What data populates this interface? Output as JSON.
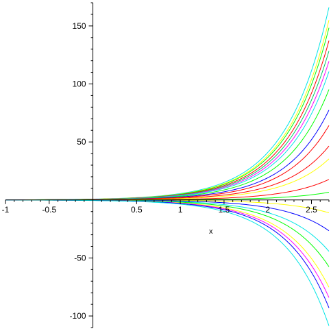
{
  "chart_data": {
    "type": "line",
    "title": "",
    "xlabel": "x",
    "ylabel": "",
    "xlim": [
      -1,
      2.7
    ],
    "ylim": [
      -110,
      170
    ],
    "grid": false,
    "legend": "none",
    "x_ticks": [
      {
        "value": -1,
        "label": "-1"
      },
      {
        "value": -0.5,
        "label": "-0.5"
      },
      {
        "value": 0.5,
        "label": "0.5"
      },
      {
        "value": 1,
        "label": "1"
      },
      {
        "value": 1.5,
        "label": "1.5"
      },
      {
        "value": 2,
        "label": "2"
      },
      {
        "value": 2.5,
        "label": "2.5"
      }
    ],
    "y_ticks": [
      {
        "value": 150,
        "label": "150"
      },
      {
        "value": 100,
        "label": "100"
      },
      {
        "value": 50,
        "label": "50"
      },
      {
        "value": -50,
        "label": "-50"
      },
      {
        "value": -100,
        "label": "-100"
      }
    ],
    "curve_formula": "y = c * exp(2x)",
    "series": [
      {
        "c": 0.75,
        "color": "#00e5e5"
      },
      {
        "c": 0.7,
        "color": "#ffff00"
      },
      {
        "c": 0.67,
        "color": "#00ff00"
      },
      {
        "c": 0.62,
        "color": "#ff0000"
      },
      {
        "c": 0.58,
        "color": "#00cc66"
      },
      {
        "c": 0.54,
        "color": "#ff00ff"
      },
      {
        "c": 0.5,
        "color": "#00e5e5"
      },
      {
        "c": 0.43,
        "color": "#00ff00"
      },
      {
        "c": 0.35,
        "color": "#0000ff"
      },
      {
        "c": 0.29,
        "color": "#ff0000"
      },
      {
        "c": 0.21,
        "color": "#ff0000"
      },
      {
        "c": 0.16,
        "color": "#ffff00"
      },
      {
        "c": 0.08,
        "color": "#ff0000"
      },
      {
        "c": 0.03,
        "color": "#00ff00"
      },
      {
        "c": -0.05,
        "color": "#ffff00"
      },
      {
        "c": -0.12,
        "color": "#0000ff"
      },
      {
        "c": -0.2,
        "color": "#00e5e5"
      },
      {
        "c": -0.26,
        "color": "#00ff00"
      },
      {
        "c": -0.34,
        "color": "#ffff00"
      },
      {
        "c": -0.38,
        "color": "#ff00ff"
      },
      {
        "c": -0.42,
        "color": "#0000ff"
      },
      {
        "c": -0.49,
        "color": "#00e5e5"
      }
    ]
  }
}
